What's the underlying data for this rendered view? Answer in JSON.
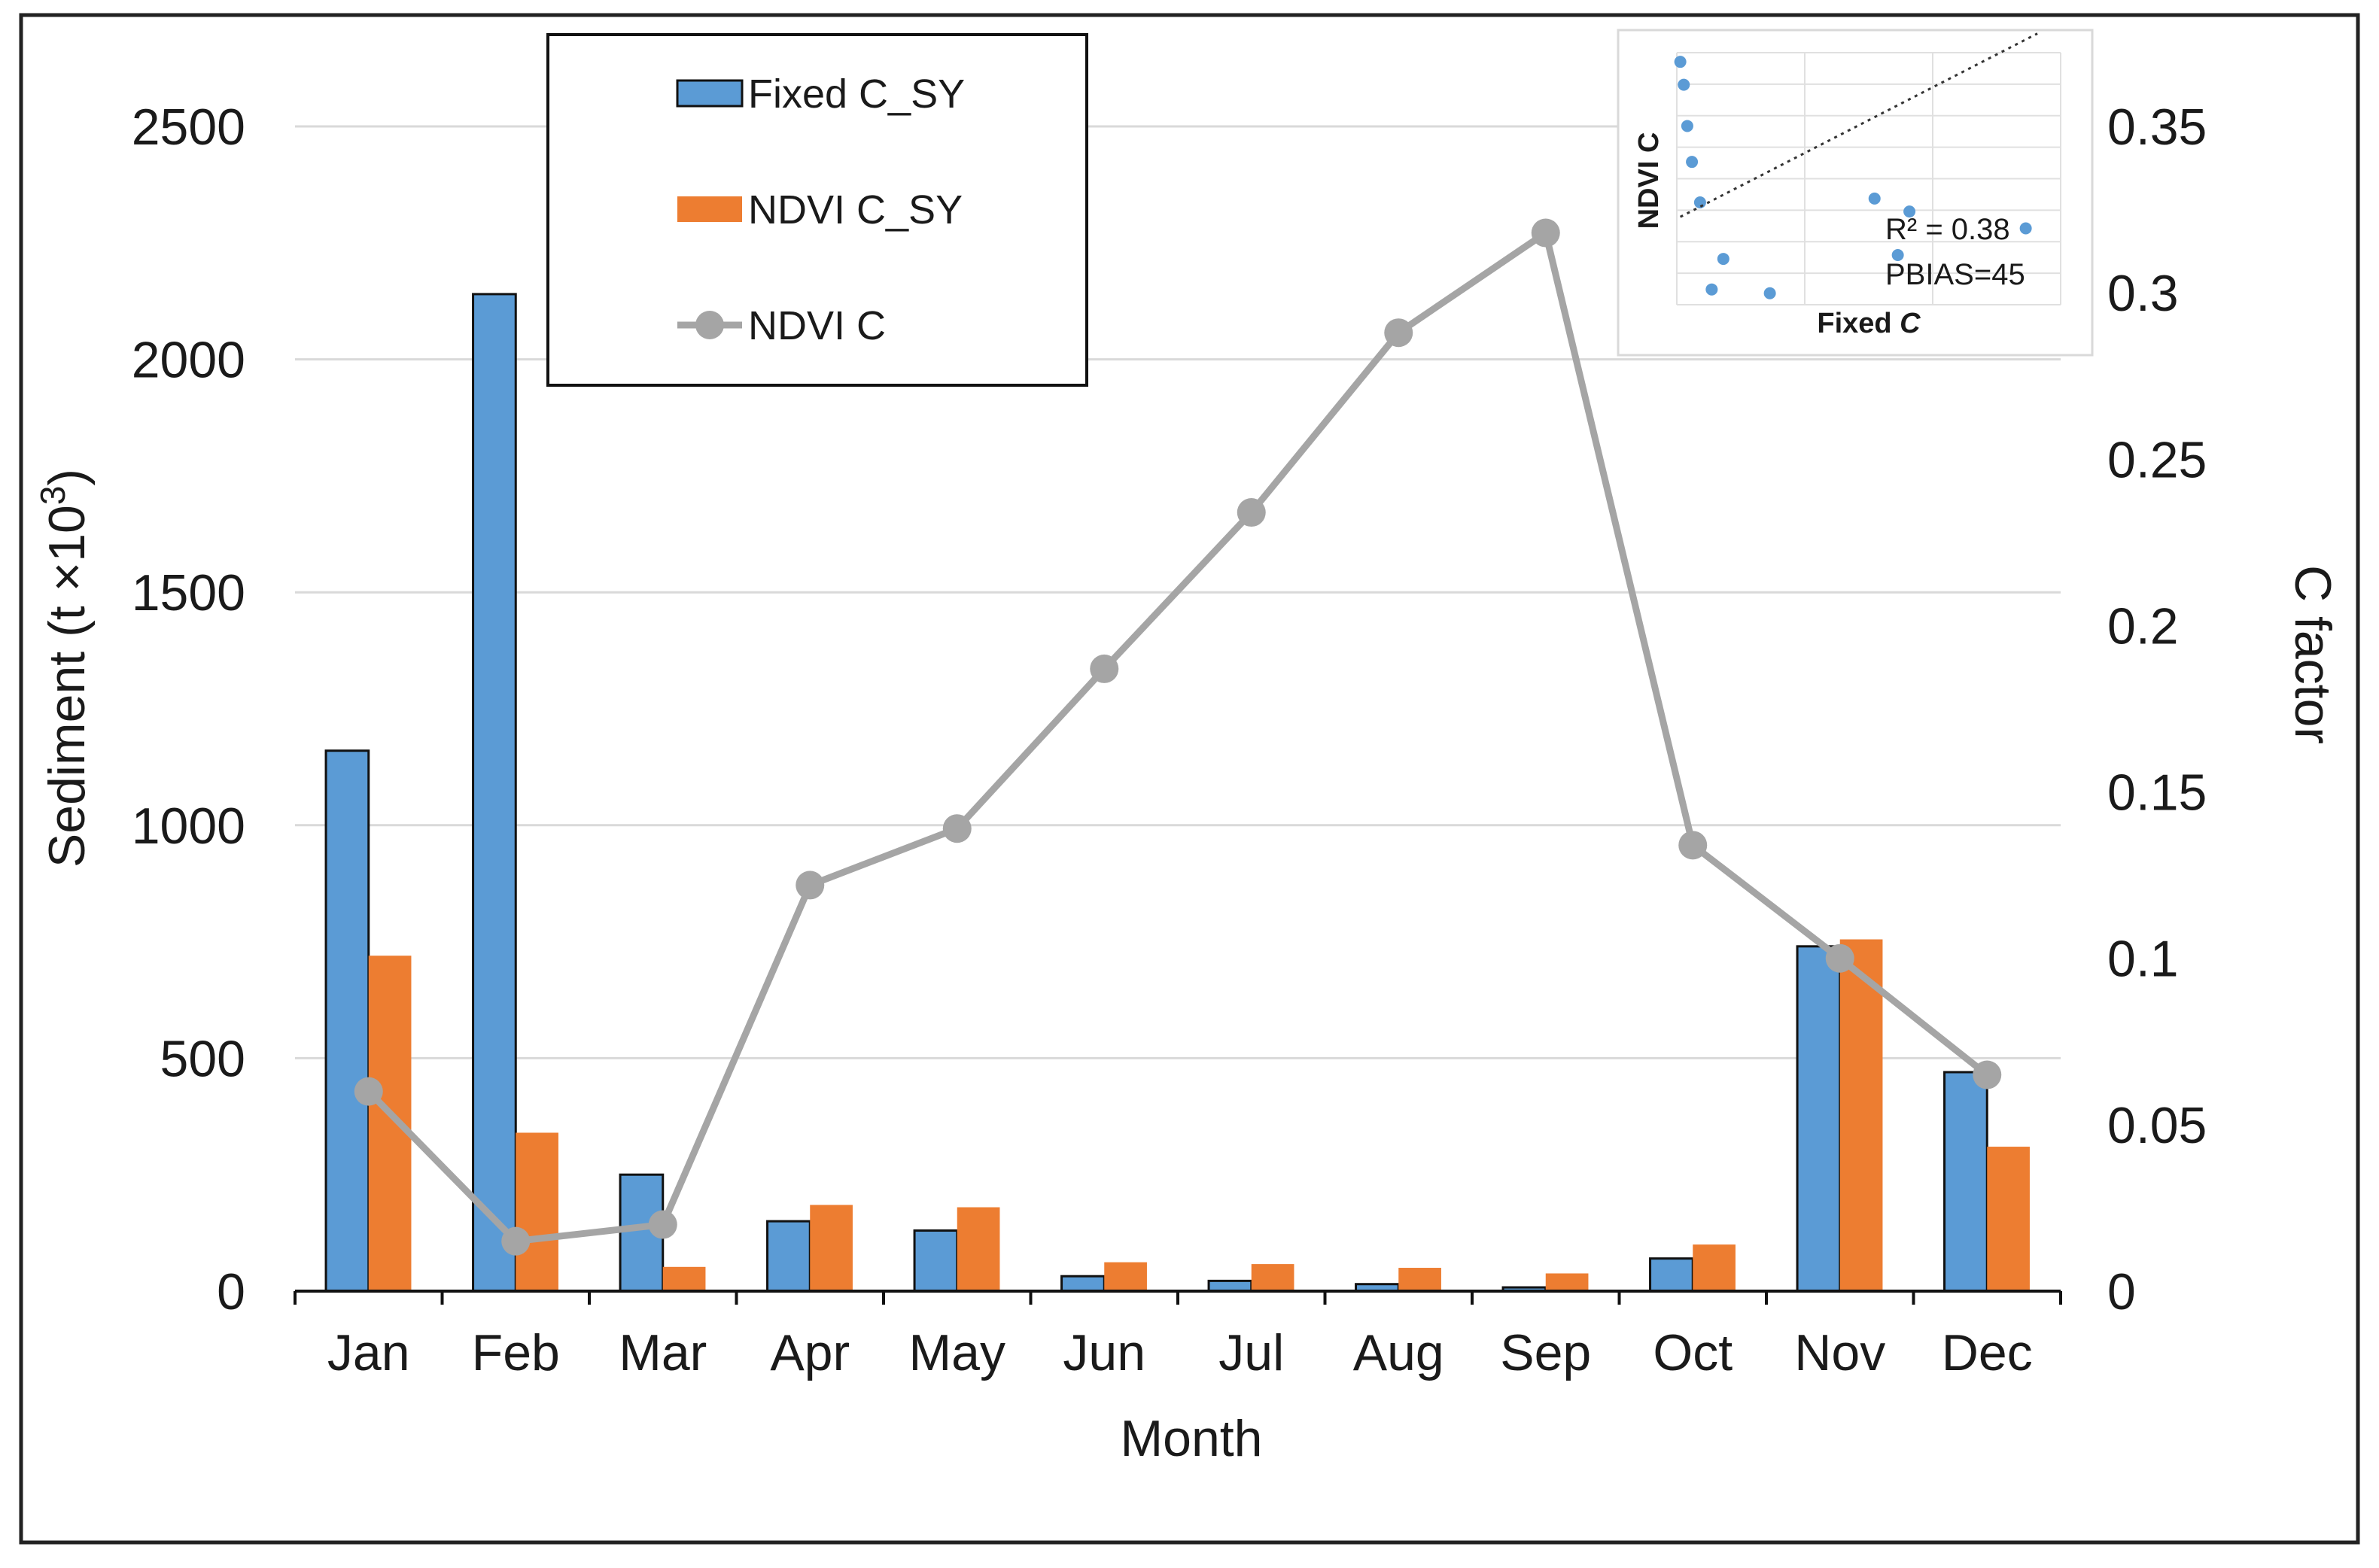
{
  "chart_data": {
    "type": "bar",
    "categories": [
      "Jan",
      "Feb",
      "Mar",
      "Apr",
      "May",
      "Jun",
      "Jul",
      "Aug",
      "Sep",
      "Oct",
      "Nov",
      "Dec"
    ],
    "xlabel": "Month",
    "ylabel": "Sediment (t ×10",
    "ylabel_superscript": "3",
    "ylabel_suffix": ")",
    "y2label": "C factor",
    "ylim": [
      0,
      2500
    ],
    "yticks": [
      "0",
      "500",
      "1000",
      "1500",
      "2000",
      "2500"
    ],
    "y2lim": [
      0,
      0.35
    ],
    "y2ticks": [
      "0",
      "0.05",
      "0.1",
      "0.15",
      "0.2",
      "0.25",
      "0.3",
      "0.35"
    ],
    "grid": "horizontal",
    "series": [
      {
        "name": "Fixed C_SY",
        "kind": "bar",
        "axis": "left",
        "color": "#5b9bd5",
        "values": [
          1160,
          2140,
          250,
          150,
          130,
          32,
          22,
          15,
          8,
          70,
          740,
          470
        ]
      },
      {
        "name": "NDVI C_SY",
        "kind": "bar",
        "axis": "left",
        "color": "#ed7d31",
        "values": [
          720,
          340,
          52,
          185,
          180,
          62,
          58,
          50,
          38,
          100,
          755,
          310
        ]
      },
      {
        "name": "NDVI C",
        "kind": "line",
        "axis": "right",
        "color": "#a5a5a5",
        "values": [
          0.06,
          0.015,
          0.02,
          0.122,
          0.139,
          0.187,
          0.234,
          0.288,
          0.318,
          0.134,
          0.1,
          0.065
        ]
      }
    ],
    "legend": {
      "position": "top-center",
      "labels": [
        "Fixed C_SY",
        "NDVI C_SY",
        "NDVI C"
      ]
    },
    "inset": {
      "type": "scatter",
      "position": "top-right",
      "xlabel": "Fixed ",
      "xlabel_italic": "C",
      "ylabel": "NDVI C",
      "r2_label": "R² = 0.38",
      "pbias_label": "PBIAS=45",
      "point_color": "#5b9bd5",
      "points": [
        [
          0.04,
          0.06
        ],
        [
          0.08,
          0.015
        ],
        [
          0.03,
          0.02
        ],
        [
          0.2,
          0.122
        ],
        [
          0.17,
          0.139
        ],
        [
          0.013,
          0.187
        ],
        [
          0.009,
          0.234
        ],
        [
          0.006,
          0.288
        ],
        [
          0.003,
          0.318
        ],
        [
          0.02,
          0.134
        ],
        [
          0.3,
          0.1
        ],
        [
          0.19,
          0.065
        ]
      ]
    }
  }
}
